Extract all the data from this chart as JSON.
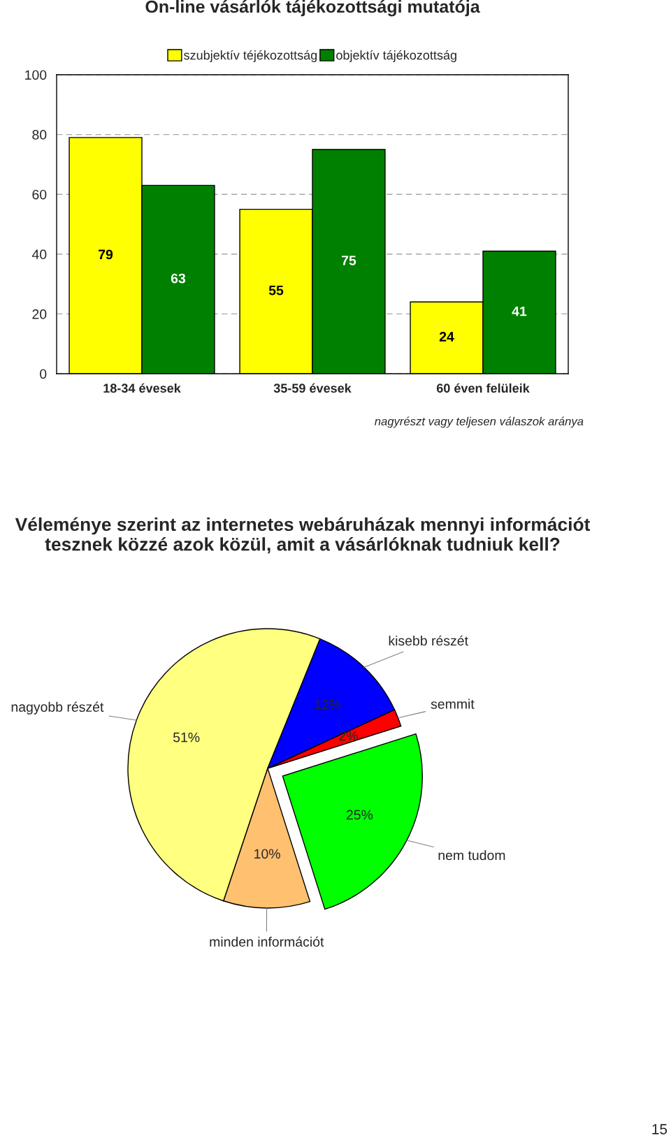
{
  "chart_data": [
    {
      "type": "bar",
      "title": "On-line vásárlók tájékozottsági mutatója",
      "categories": [
        "18-34 évesek",
        "35-59 évesek",
        "60 éven felüleik"
      ],
      "series": [
        {
          "name": "szubjektív téjékozottság",
          "color": "#ffff00",
          "values": [
            79,
            55,
            24
          ]
        },
        {
          "name": "objektív tájékozottság",
          "color": "#008000",
          "values": [
            63,
            75,
            41
          ]
        }
      ],
      "ylim": [
        0,
        100
      ],
      "yticks": [
        0,
        20,
        40,
        60,
        80,
        100
      ],
      "grid": "y",
      "legend": "top",
      "data_labels": true,
      "annotations": [
        "nagyrészt vagy teljesen válaszok aránya"
      ]
    },
    {
      "type": "pie",
      "title": "Véleménye szerint az internetes webáruházak mennyi információt tesznek közzé azok közül, amit a vásárlóknak tudniuk kell?",
      "categories": [
        "nagyobb részét",
        "kisebb részét",
        "semmit",
        "nem tudom",
        "minden információt"
      ],
      "values": [
        51,
        12,
        2,
        25,
        10
      ],
      "colors": [
        "#ffff80",
        "#0000ff",
        "#ff0000",
        "#00ff00",
        "#ffc070"
      ],
      "value_labels": [
        "51%",
        "12%",
        "2%",
        "25%",
        "10%"
      ],
      "annotations": [
        "15"
      ]
    }
  ]
}
